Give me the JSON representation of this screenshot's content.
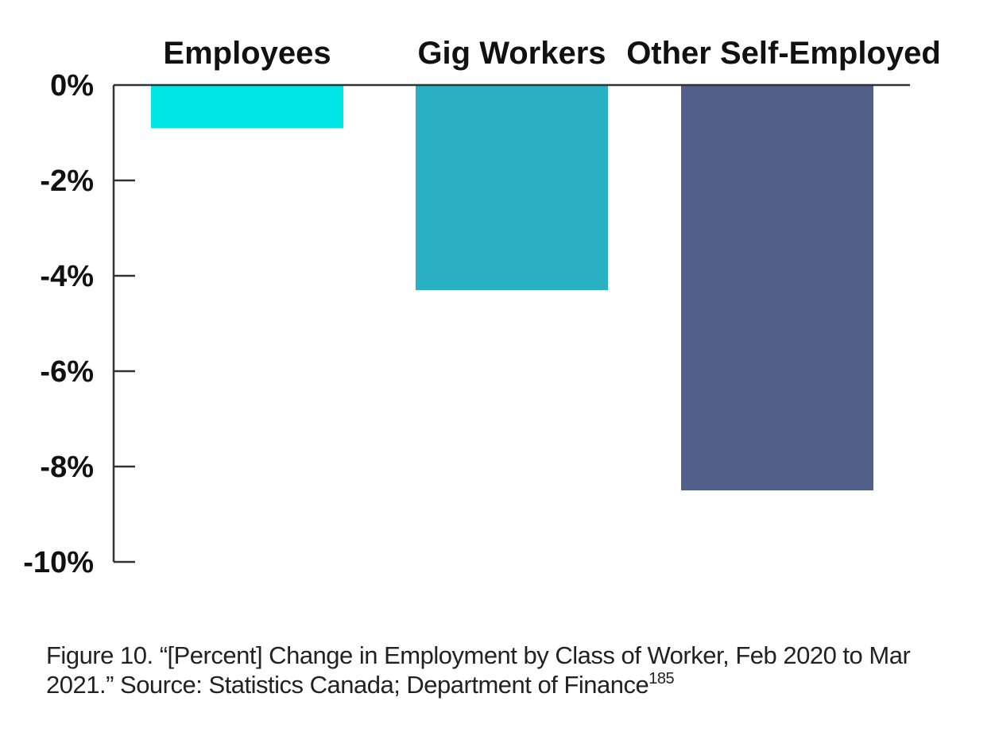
{
  "chart_data": {
    "type": "bar",
    "categories": [
      "Employees",
      "Gig Workers",
      "Other Self-Employed"
    ],
    "values": [
      -0.9,
      -4.3,
      -8.5
    ],
    "colors": [
      "#00e5e5",
      "#29b0c3",
      "#525f88"
    ],
    "title": "",
    "xlabel": "",
    "ylabel": "",
    "ylim": [
      -10,
      0
    ],
    "yticks": [
      0,
      -2,
      -4,
      -6,
      -8,
      -10
    ],
    "ytick_labels": [
      "0%",
      "-2%",
      "-4%",
      "-6%",
      "-8%",
      "-10%"
    ],
    "category_label_position": "top",
    "grid": false,
    "legend": "none"
  },
  "caption": {
    "text": "Figure 10. “[Percent] Change in Employment by Class of Worker, Feb 2020 to Mar 2021.” Source: Statistics Canada; Department of Finance",
    "footnote": "185"
  }
}
